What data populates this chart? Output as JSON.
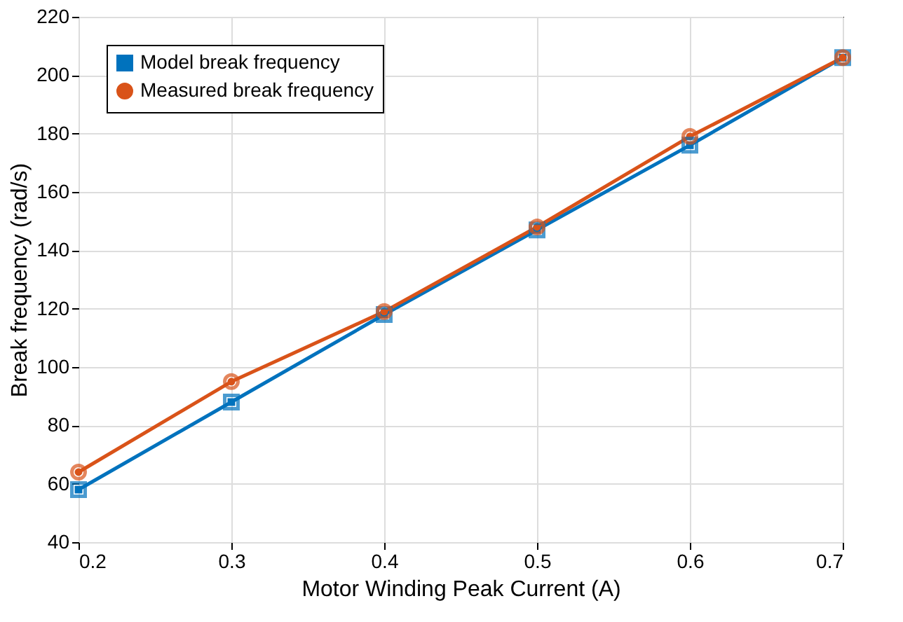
{
  "chart_data": {
    "type": "line",
    "xlabel": "Motor Winding Peak Current (A)",
    "ylabel": "Break frequency (rad/s)",
    "x": [
      0.2,
      0.3,
      0.4,
      0.5,
      0.6,
      0.7
    ],
    "series": [
      {
        "name": "Model break frequency",
        "color": "#0072bd",
        "marker": "square",
        "values": [
          58,
          88,
          118,
          147,
          176,
          206
        ]
      },
      {
        "name": "Measured break frequency",
        "color": "#d95319",
        "marker": "circle",
        "values": [
          64,
          95,
          119,
          148,
          179,
          206
        ]
      }
    ],
    "xlim": [
      0.2,
      0.7
    ],
    "xticks": [
      0.2,
      0.3,
      0.4,
      0.5,
      0.6,
      0.7
    ],
    "ylim": [
      40,
      220
    ],
    "yticks": [
      40,
      60,
      80,
      100,
      120,
      140,
      160,
      180,
      200,
      220
    ],
    "grid": true,
    "legend": "top left",
    "line_style": "solid"
  }
}
